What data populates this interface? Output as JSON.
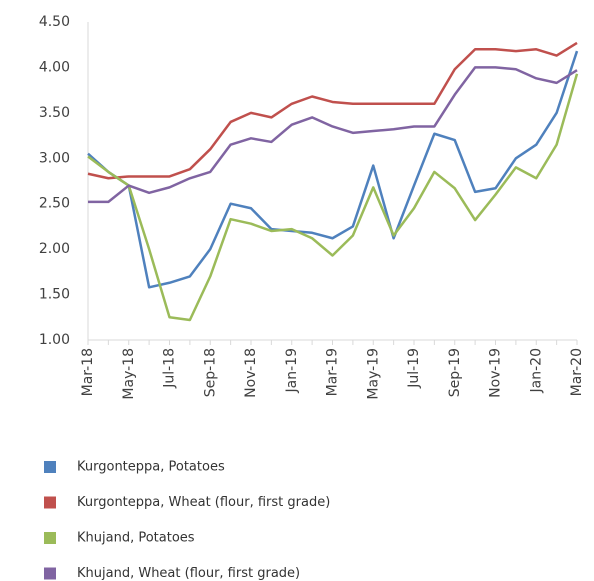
{
  "chart_data": {
    "type": "line",
    "categories": [
      "Mar-18",
      null,
      "May-18",
      null,
      "Jul-18",
      null,
      "Sep-18",
      null,
      "Nov-18",
      null,
      "Jan-19",
      null,
      "Mar-19",
      null,
      "May-19",
      null,
      "Jul-19",
      null,
      "Sep-19",
      null,
      "Nov-19",
      null,
      "Jan-20",
      null,
      "Mar-20"
    ],
    "series": [
      {
        "name": "Kurgonteppa, Potatoes",
        "color": "#4f81bd",
        "values": [
          3.05,
          2.85,
          2.7,
          1.58,
          1.63,
          1.7,
          2.0,
          2.5,
          2.45,
          2.22,
          2.2,
          2.18,
          2.12,
          2.25,
          2.92,
          2.12,
          2.7,
          3.27,
          3.2,
          2.63,
          2.67,
          3.0,
          3.15,
          3.5,
          4.18
        ]
      },
      {
        "name": "Kurgonteppa, Wheat (flour, first grade)",
        "color": "#c0504d",
        "values": [
          2.83,
          2.78,
          2.8,
          2.8,
          2.8,
          2.88,
          3.1,
          3.4,
          3.5,
          3.45,
          3.6,
          3.68,
          3.62,
          3.6,
          3.6,
          3.6,
          3.6,
          3.6,
          3.98,
          4.2,
          4.2,
          4.18,
          4.2,
          4.13,
          4.27
        ]
      },
      {
        "name": "Khujand, Potatoes",
        "color": "#9bbb59",
        "values": [
          3.02,
          2.85,
          2.7,
          2.0,
          1.25,
          1.22,
          1.7,
          2.33,
          2.28,
          2.2,
          2.22,
          2.12,
          1.93,
          2.15,
          2.68,
          2.15,
          2.45,
          2.85,
          2.67,
          2.32,
          2.6,
          2.9,
          2.78,
          3.15,
          3.93
        ]
      },
      {
        "name": "Khujand, Wheat (flour, first grade)",
        "color": "#8064a2",
        "values": [
          2.52,
          2.52,
          2.7,
          2.62,
          2.68,
          2.78,
          2.85,
          3.15,
          3.22,
          3.18,
          3.37,
          3.45,
          3.35,
          3.28,
          3.3,
          3.32,
          3.35,
          3.35,
          3.7,
          4.0,
          4.0,
          3.98,
          3.88,
          3.83,
          3.97
        ]
      }
    ],
    "ylim": [
      1,
      4.5
    ],
    "yticks": [
      {
        "value": 1,
        "label": "1.00"
      },
      {
        "value": 1.5,
        "label": "1.50"
      },
      {
        "value": 2,
        "label": "2.00"
      },
      {
        "value": 2.5,
        "label": "2.50"
      },
      {
        "value": 3,
        "label": "3.00"
      },
      {
        "value": 3.5,
        "label": "3.50"
      },
      {
        "value": 4,
        "label": "4.00"
      },
      {
        "value": 4.5,
        "label": "4.50"
      }
    ],
    "grid": false
  }
}
